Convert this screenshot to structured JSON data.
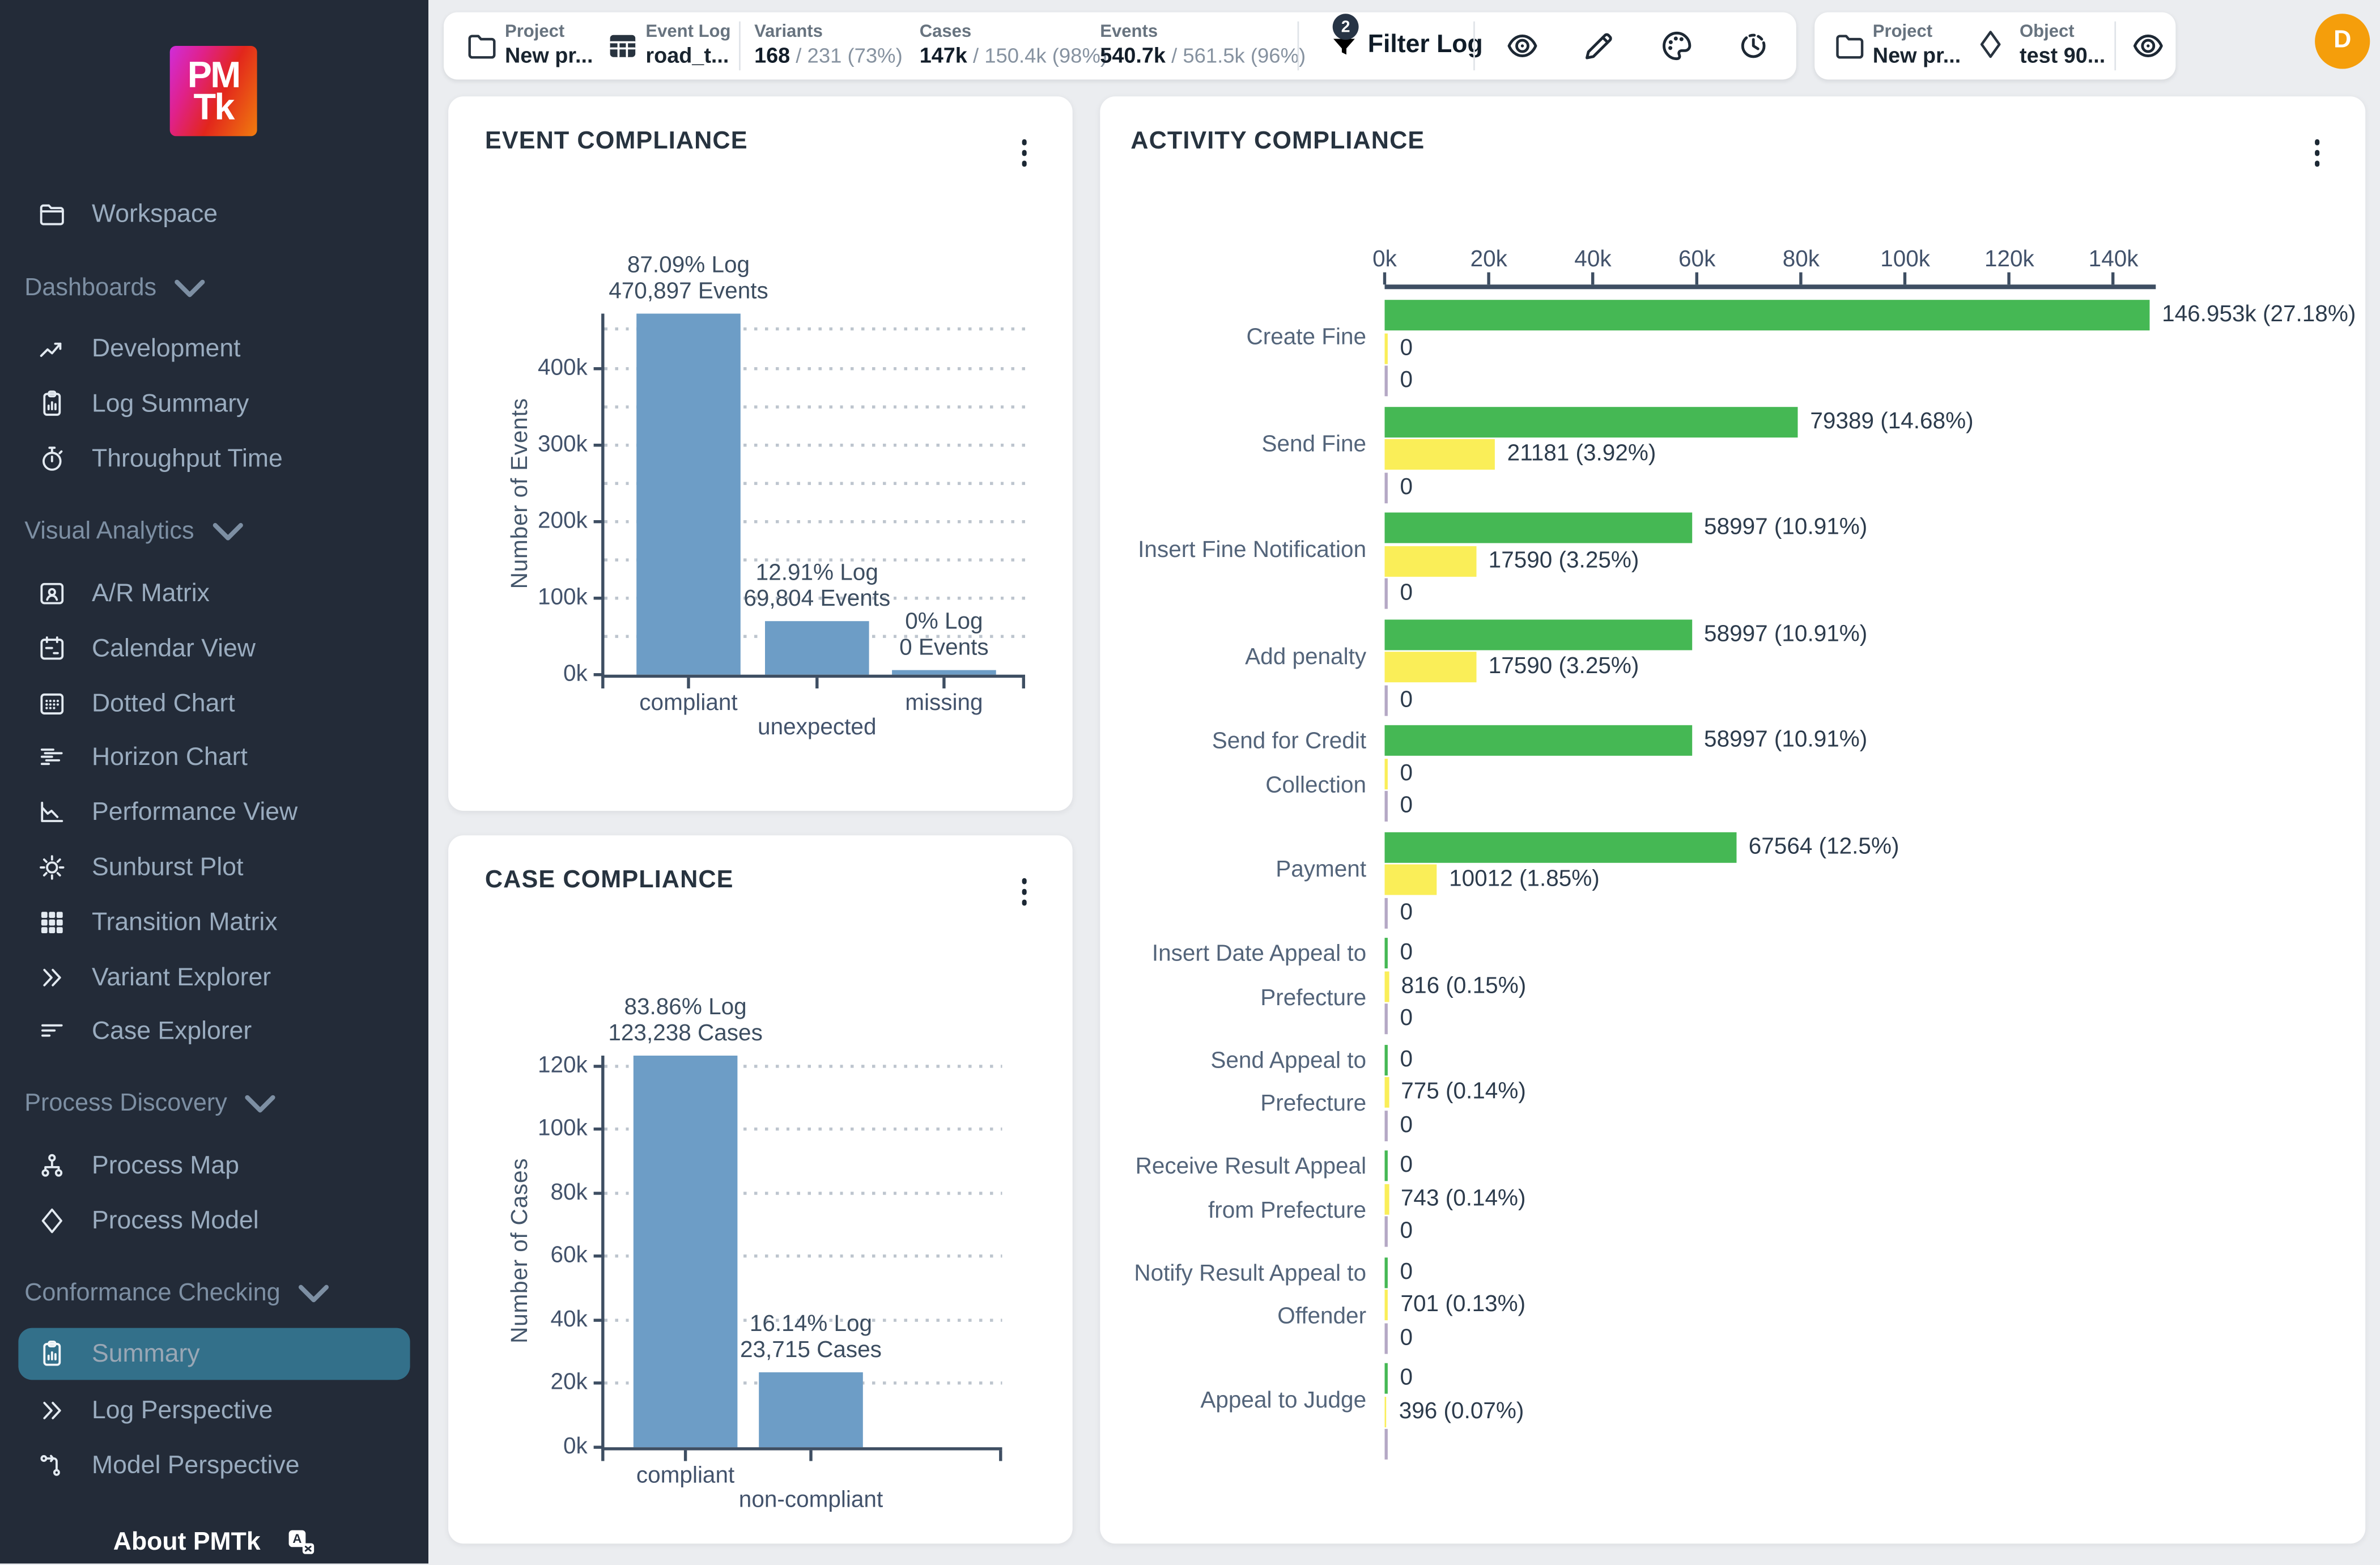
{
  "sidebar": {
    "logo": {
      "line1": "PM",
      "line2": "Tk"
    },
    "workspace_label": "Workspace",
    "sections": [
      {
        "label": "Dashboards",
        "items": [
          {
            "label": "Development"
          },
          {
            "label": "Log Summary"
          },
          {
            "label": "Throughput Time"
          }
        ]
      },
      {
        "label": "Visual Analytics",
        "items": [
          {
            "label": "A/R Matrix"
          },
          {
            "label": "Calendar View"
          },
          {
            "label": "Dotted Chart"
          },
          {
            "label": "Horizon Chart"
          },
          {
            "label": "Performance View"
          },
          {
            "label": "Sunburst Plot"
          },
          {
            "label": "Transition Matrix"
          },
          {
            "label": "Variant Explorer"
          },
          {
            "label": "Case Explorer"
          }
        ]
      },
      {
        "label": "Process Discovery",
        "items": [
          {
            "label": "Process Map"
          },
          {
            "label": "Process Model"
          }
        ]
      },
      {
        "label": "Conformance Checking",
        "items": [
          {
            "label": "Summary"
          },
          {
            "label": "Log Perspective"
          },
          {
            "label": "Model Perspective"
          }
        ]
      }
    ],
    "selected_item": "Summary",
    "about_label": "About PMTk"
  },
  "topbar": {
    "project": {
      "label": "Project",
      "value": "New pr..."
    },
    "event_log": {
      "label": "Event Log",
      "value": "road_t..."
    },
    "stats": [
      {
        "label": "Variants",
        "primary": "168",
        "secondary": " / 231 (73%)"
      },
      {
        "label": "Cases",
        "primary": "147k",
        "secondary": " / 150.4k (98%)"
      },
      {
        "label": "Events",
        "primary": "540.7k",
        "secondary": " / 561.5k (96%)"
      }
    ],
    "filter": {
      "label": "Filter Log",
      "badge": "2"
    },
    "object_card": {
      "project_label": "Project",
      "project_value": "New pr...",
      "object_label": "Object",
      "object_value": "test 90..."
    },
    "avatar_initial": "D"
  },
  "colors": {
    "sidebar_bg": "#232b38",
    "sidebar_selected": "#33708a",
    "bar_blue": "#6d9dc6",
    "bar_green": "#45b854",
    "bar_yellow": "#faee58",
    "bar_missing": "#b5a8c5",
    "avatar_orange": "#f59e0b",
    "badge_navy": "#273445"
  },
  "chart_data": [
    {
      "type": "bar",
      "title": "EVENT COMPLIANCE",
      "ylabel": "Number of Events",
      "ylim": [
        0,
        470897
      ],
      "grid_step": 50000,
      "yticks": [
        {
          "v": 0,
          "label": "0k"
        },
        {
          "v": 100000,
          "label": "100k"
        },
        {
          "v": 200000,
          "label": "200k"
        },
        {
          "v": 300000,
          "label": "300k"
        },
        {
          "v": 400000,
          "label": "400k"
        }
      ],
      "categories": [
        "compliant",
        "unexpected",
        "missing"
      ],
      "values": [
        470897,
        69804,
        0
      ],
      "bar_color": "#6d9dc6",
      "annotations": [
        [
          "87.09% Log",
          "470,897 Events"
        ],
        [
          "12.91% Log",
          "69,804 Events"
        ],
        [
          "0% Log",
          "0 Events"
        ]
      ]
    },
    {
      "type": "bar",
      "title": "CASE COMPLIANCE",
      "ylabel": "Number of Cases",
      "ylim": [
        0,
        123238
      ],
      "grid_step": 20000,
      "yticks": [
        {
          "v": 0,
          "label": "0k"
        },
        {
          "v": 20000,
          "label": "20k"
        },
        {
          "v": 40000,
          "label": "40k"
        },
        {
          "v": 60000,
          "label": "60k"
        },
        {
          "v": 80000,
          "label": "80k"
        },
        {
          "v": 100000,
          "label": "100k"
        },
        {
          "v": 120000,
          "label": "120k"
        }
      ],
      "categories": [
        "compliant",
        "non-compliant"
      ],
      "values": [
        123238,
        23715
      ],
      "bar_color": "#6d9dc6",
      "annotations": [
        [
          "83.86% Log",
          "123,238 Cases"
        ],
        [
          "16.14% Log",
          "23,715 Cases"
        ]
      ]
    },
    {
      "type": "bar-horizontal",
      "title": "ACTIVITY COMPLIANCE",
      "xlim": [
        0,
        146953
      ],
      "xticks": [
        {
          "v": 0,
          "label": "0k"
        },
        {
          "v": 20000,
          "label": "20k"
        },
        {
          "v": 40000,
          "label": "40k"
        },
        {
          "v": 60000,
          "label": "60k"
        },
        {
          "v": 80000,
          "label": "80k"
        },
        {
          "v": 100000,
          "label": "100k"
        },
        {
          "v": 120000,
          "label": "120k"
        },
        {
          "v": 140000,
          "label": "140k"
        }
      ],
      "series_colors": [
        "#45b854",
        "#faee58",
        "#b5a8c5"
      ],
      "rows": [
        {
          "label_lines": [
            "Create Fine"
          ],
          "values": [
            146953,
            0,
            0
          ],
          "labels": [
            "146.953k (27.18%)",
            "0",
            "0"
          ]
        },
        {
          "label_lines": [
            "Send Fine"
          ],
          "values": [
            79389,
            21181,
            0
          ],
          "labels": [
            "79389 (14.68%)",
            "21181 (3.92%)",
            "0"
          ]
        },
        {
          "label_lines": [
            "Insert Fine Notification"
          ],
          "values": [
            58997,
            17590,
            0
          ],
          "labels": [
            "58997 (10.91%)",
            "17590 (3.25%)",
            "0"
          ]
        },
        {
          "label_lines": [
            "Add penalty"
          ],
          "values": [
            58997,
            17590,
            0
          ],
          "labels": [
            "58997 (10.91%)",
            "17590 (3.25%)",
            "0"
          ]
        },
        {
          "label_lines": [
            "Send for Credit",
            "Collection"
          ],
          "values": [
            58997,
            0,
            0
          ],
          "labels": [
            "58997 (10.91%)",
            "0",
            "0"
          ]
        },
        {
          "label_lines": [
            "Payment"
          ],
          "values": [
            67564,
            10012,
            0
          ],
          "labels": [
            "67564 (12.5%)",
            "10012 (1.85%)",
            "0"
          ]
        },
        {
          "label_lines": [
            "Insert Date Appeal to",
            "Prefecture"
          ],
          "values": [
            0,
            816,
            0
          ],
          "labels": [
            "0",
            "816 (0.15%)",
            "0"
          ]
        },
        {
          "label_lines": [
            "Send Appeal to",
            "Prefecture"
          ],
          "values": [
            0,
            775,
            0
          ],
          "labels": [
            "0",
            "775 (0.14%)",
            "0"
          ]
        },
        {
          "label_lines": [
            "Receive Result Appeal",
            "from Prefecture"
          ],
          "values": [
            0,
            743,
            0
          ],
          "labels": [
            "0",
            "743 (0.14%)",
            "0"
          ]
        },
        {
          "label_lines": [
            "Notify Result Appeal to",
            "Offender"
          ],
          "values": [
            0,
            701,
            0
          ],
          "labels": [
            "0",
            "701 (0.13%)",
            "0"
          ]
        },
        {
          "label_lines": [
            "Appeal to Judge"
          ],
          "values": [
            0,
            396,
            0
          ],
          "labels": [
            "0",
            "396 (0.07%)",
            ""
          ]
        }
      ]
    }
  ]
}
